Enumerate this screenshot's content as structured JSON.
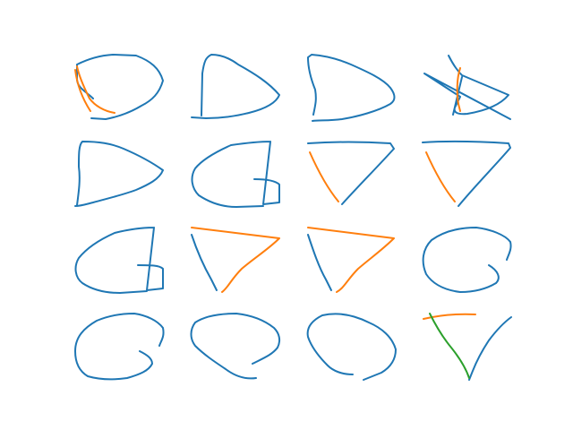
{
  "colors": {
    "background": "#ffffff",
    "stroke_1": "#1f77b4",
    "stroke_2": "#ff7f0e",
    "stroke_3": "#2ca02c"
  },
  "grid": {
    "rows": 4,
    "columns": 4
  },
  "sketches": [
    {
      "row": 1,
      "col": 1,
      "shape": "rounded loop with crossing strokes",
      "stroke_count": 2
    },
    {
      "row": 1,
      "col": 2,
      "shape": "d-shape",
      "stroke_count": 1
    },
    {
      "row": 1,
      "col": 3,
      "shape": "d-shape",
      "stroke_count": 1
    },
    {
      "row": 1,
      "col": 4,
      "shape": "star-like scribble",
      "stroke_count": 2
    },
    {
      "row": 2,
      "col": 1,
      "shape": "d-shape",
      "stroke_count": 1
    },
    {
      "row": 2,
      "col": 2,
      "shape": "g-shape",
      "stroke_count": 1
    },
    {
      "row": 2,
      "col": 3,
      "shape": "inverted triangle",
      "stroke_count": 2
    },
    {
      "row": 2,
      "col": 4,
      "shape": "inverted triangle",
      "stroke_count": 2
    },
    {
      "row": 3,
      "col": 1,
      "shape": "g-shape",
      "stroke_count": 1
    },
    {
      "row": 3,
      "col": 2,
      "shape": "inverted triangle",
      "stroke_count": 2
    },
    {
      "row": 3,
      "col": 3,
      "shape": "inverted triangle",
      "stroke_count": 2
    },
    {
      "row": 3,
      "col": 4,
      "shape": "curl",
      "stroke_count": 1
    },
    {
      "row": 4,
      "col": 1,
      "shape": "curl",
      "stroke_count": 1
    },
    {
      "row": 4,
      "col": 2,
      "shape": "open oval",
      "stroke_count": 1
    },
    {
      "row": 4,
      "col": 3,
      "shape": "open oval",
      "stroke_count": 1
    },
    {
      "row": 4,
      "col": 4,
      "shape": "inverted triangle",
      "stroke_count": 3
    }
  ]
}
